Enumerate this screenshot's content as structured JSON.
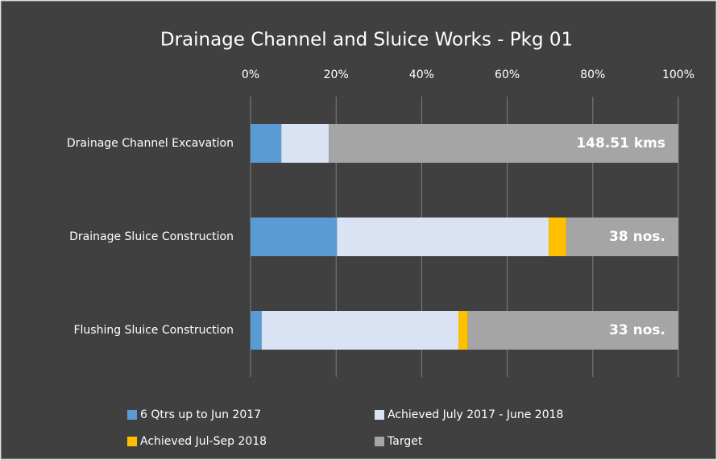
{
  "chart_data": {
    "type": "stacked-barh",
    "title": "Drainage Channel and Sluice Works - Pkg 01",
    "categories": [
      "Drainage Channel Excavation",
      "Drainage Sluice Construction",
      "Flushing Sluice Construction"
    ],
    "series": [
      {
        "name": "6 Qtrs up to Jun 2017",
        "color": "#5b9bd5",
        "values": [
          7.2,
          20.2,
          2.6
        ]
      },
      {
        "name": "Achieved July 2017 - June 2018",
        "color": "#dae3f3",
        "values": [
          11.1,
          49.5,
          46
        ]
      },
      {
        "name": "Achieved Jul-Sep 2018",
        "color": "#ffc000",
        "values": [
          0,
          4.1,
          2.2
        ]
      },
      {
        "name": "Target",
        "color": "#a5a5a5",
        "values": [
          81.7,
          26.2,
          49.2
        ]
      }
    ],
    "annotations": [
      "148.51 kms",
      "38 nos.",
      "33 nos."
    ],
    "xlim": [
      0,
      100
    ],
    "xticks": [
      {
        "value": 0,
        "label": "0%"
      },
      {
        "value": 20,
        "label": "20%"
      },
      {
        "value": 40,
        "label": "40%"
      },
      {
        "value": 60,
        "label": "60%"
      },
      {
        "value": 80,
        "label": "80%"
      },
      {
        "value": 100,
        "label": "100%"
      }
    ],
    "grid": true,
    "legend": "bottom"
  }
}
